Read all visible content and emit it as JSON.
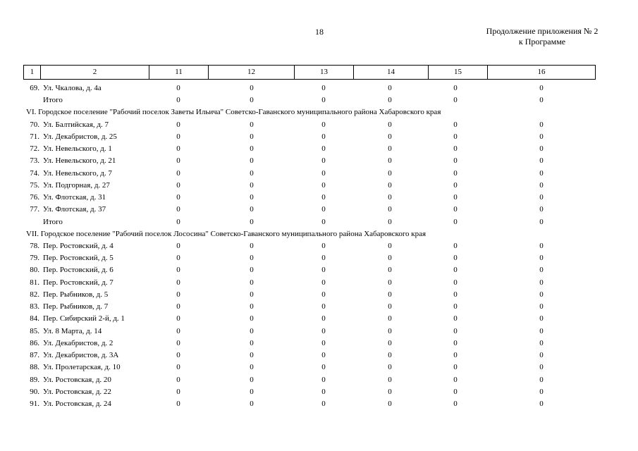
{
  "header": {
    "page_number": "18",
    "note_line1": "Продолжение приложения № 2",
    "note_line2": "к Программе"
  },
  "table": {
    "columns": [
      "1",
      "2",
      "11",
      "12",
      "13",
      "14",
      "15",
      "16"
    ],
    "rows": [
      {
        "num": "69.",
        "name": "Ул. Чкалова, д. 4а",
        "values": [
          0,
          0,
          0,
          0,
          0,
          0
        ]
      },
      {
        "name": "Итого",
        "values": [
          0,
          0,
          0,
          0,
          0,
          0
        ]
      },
      {
        "section": "VI. Городское поселение \"Рабочий поселок Заветы Ильича\" Советско-Гаванского муниципального района Хабаровского края"
      },
      {
        "num": "70.",
        "name": "Ул. Балтийская, д. 7",
        "values": [
          0,
          0,
          0,
          0,
          0,
          0
        ]
      },
      {
        "num": "71.",
        "name": "Ул. Декабристов, д. 25",
        "values": [
          0,
          0,
          0,
          0,
          0,
          0
        ]
      },
      {
        "num": "72.",
        "name": "Ул. Невельского, д. 1",
        "values": [
          0,
          0,
          0,
          0,
          0,
          0
        ]
      },
      {
        "num": "73.",
        "name": "Ул. Невельского, д. 21",
        "values": [
          0,
          0,
          0,
          0,
          0,
          0
        ]
      },
      {
        "num": "74.",
        "name": "Ул. Невельского, д. 7",
        "values": [
          0,
          0,
          0,
          0,
          0,
          0
        ]
      },
      {
        "num": "75.",
        "name": "Ул. Подгорная, д. 27",
        "values": [
          0,
          0,
          0,
          0,
          0,
          0
        ]
      },
      {
        "num": "76.",
        "name": "Ул. Флотская, д. 31",
        "values": [
          0,
          0,
          0,
          0,
          0,
          0
        ]
      },
      {
        "num": "77.",
        "name": "Ул. Флотская, д. 37",
        "values": [
          0,
          0,
          0,
          0,
          0,
          0
        ]
      },
      {
        "name": "Итого",
        "values": [
          0,
          0,
          0,
          0,
          0,
          0
        ]
      },
      {
        "section": "VII. Городское поселение \"Рабочий поселок Лососина\" Советско-Гаванского муниципального района Хабаровского края"
      },
      {
        "num": "78.",
        "name": "Пер. Ростовский, д. 4",
        "values": [
          0,
          0,
          0,
          0,
          0,
          0
        ]
      },
      {
        "num": "79.",
        "name": "Пер. Ростовский, д. 5",
        "values": [
          0,
          0,
          0,
          0,
          0,
          0
        ]
      },
      {
        "num": "80.",
        "name": "Пер. Ростовский, д. 6",
        "values": [
          0,
          0,
          0,
          0,
          0,
          0
        ]
      },
      {
        "num": "81.",
        "name": "Пер. Ростовский, д. 7",
        "values": [
          0,
          0,
          0,
          0,
          0,
          0
        ]
      },
      {
        "num": "82.",
        "name": "Пер. Рыбников, д. 5",
        "values": [
          0,
          0,
          0,
          0,
          0,
          0
        ]
      },
      {
        "num": "83.",
        "name": "Пер. Рыбников, д. 7",
        "values": [
          0,
          0,
          0,
          0,
          0,
          0
        ]
      },
      {
        "num": "84.",
        "name": "Пер. Сибирский 2-й, д. 1",
        "values": [
          0,
          0,
          0,
          0,
          0,
          0
        ]
      },
      {
        "num": "85.",
        "name": "Ул. 8 Марта, д. 14",
        "values": [
          0,
          0,
          0,
          0,
          0,
          0
        ]
      },
      {
        "num": "86.",
        "name": "Ул. Декабристов, д. 2",
        "values": [
          0,
          0,
          0,
          0,
          0,
          0
        ]
      },
      {
        "num": "87.",
        "name": "Ул. Декабристов, д. 3А",
        "values": [
          0,
          0,
          0,
          0,
          0,
          0
        ]
      },
      {
        "num": "88.",
        "name": "Ул. Пролетарская, д. 10",
        "values": [
          0,
          0,
          0,
          0,
          0,
          0
        ]
      },
      {
        "num": "89.",
        "name": "Ул. Ростовская, д. 20",
        "values": [
          0,
          0,
          0,
          0,
          0,
          0
        ]
      },
      {
        "num": "90.",
        "name": "Ул. Ростовская, д. 22",
        "values": [
          0,
          0,
          0,
          0,
          0,
          0
        ]
      },
      {
        "num": "91.",
        "name": "Ул. Ростовская, д. 24",
        "values": [
          0,
          0,
          0,
          0,
          0,
          0
        ]
      }
    ]
  }
}
